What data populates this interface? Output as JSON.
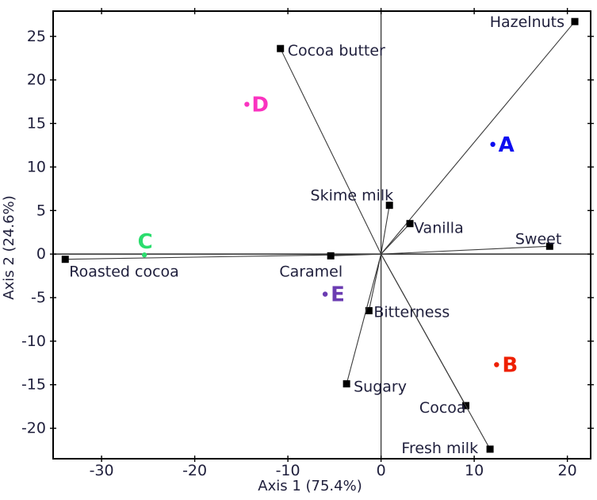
{
  "figure": {
    "background": "#ffffff"
  },
  "chart_data": {
    "type": "scatter",
    "subtype": "pca-biplot",
    "title": "",
    "xlabel": "Axis 1 (75.4%)",
    "ylabel": "Axis 2 (24.6%)",
    "xlim": [
      -35.2,
      22.5
    ],
    "ylim": [
      -23.5,
      27.9
    ],
    "x_ticks": [
      -30,
      -20,
      -10,
      0,
      10,
      20
    ],
    "y_ticks": [
      -20,
      -15,
      -10,
      -5,
      0,
      5,
      10,
      15,
      20,
      25
    ],
    "grid": false,
    "zero_axes": true,
    "legend": "none",
    "marker_style": "filled-square",
    "colors": {
      "border": "#000000",
      "zero_axis": "#2a2a2a",
      "vector_line": "#3a3a3a",
      "marker": "#000000",
      "text": "#1f1f3c"
    },
    "vectors": [
      {
        "label": "Hazelnuts",
        "x": 20.8,
        "y": 26.7,
        "label_anchor": "end",
        "label_dx": -13,
        "label_dy": 7
      },
      {
        "label": "Cocoa butter",
        "x": -10.8,
        "y": 23.6,
        "label_anchor": "start",
        "label_dx": 9,
        "label_dy": 9
      },
      {
        "label": "Skime milk",
        "x": 0.9,
        "y": 5.6,
        "label_anchor": "end",
        "label_dx": 5,
        "label_dy": -6
      },
      {
        "label": "Vanilla",
        "x": 3.1,
        "y": 3.5,
        "label_anchor": "start",
        "label_dx": 5,
        "label_dy": 12
      },
      {
        "label": "Sweet",
        "x": 18.1,
        "y": 0.9,
        "label_anchor": "end",
        "label_dx": 15,
        "label_dy": -3
      },
      {
        "label": "Roasted cocoa",
        "x": -33.9,
        "y": -0.6,
        "label_anchor": "start",
        "label_dx": 5,
        "label_dy": 22
      },
      {
        "label": "Caramel",
        "x": -5.4,
        "y": -0.2,
        "label_anchor": "end",
        "label_dx": 15,
        "label_dy": 26
      },
      {
        "label": "Bitterness",
        "x": -1.3,
        "y": -6.5,
        "label_anchor": "start",
        "label_dx": 6,
        "label_dy": 8
      },
      {
        "label": "Sugary",
        "x": -3.7,
        "y": -14.9,
        "label_anchor": "start",
        "label_dx": 9,
        "label_dy": 10
      },
      {
        "label": "Cocoa",
        "x": 9.1,
        "y": -17.4,
        "label_anchor": "end",
        "label_dx": 0,
        "label_dy": 9
      },
      {
        "label": "Fresh milk",
        "x": 11.7,
        "y": -22.4,
        "label_anchor": "end",
        "label_dx": -15,
        "label_dy": 5
      }
    ],
    "samples": [
      {
        "label": "A",
        "x": 12.0,
        "y": 12.6,
        "color": "#0d0df0",
        "label_anchor": "start",
        "label_dx": 7,
        "label_dy": 9
      },
      {
        "label": "B",
        "x": 12.4,
        "y": -12.7,
        "color": "#ee2000",
        "label_anchor": "start",
        "label_dx": 7,
        "label_dy": 9
      },
      {
        "label": "C",
        "x": -25.4,
        "y": -0.1,
        "color": "#2bdd6e",
        "label_anchor": "middle",
        "label_dx": 1,
        "label_dy": -8
      },
      {
        "label": "D",
        "x": -14.4,
        "y": 17.2,
        "color": "#fa33c0",
        "label_anchor": "start",
        "label_dx": 6,
        "label_dy": 9
      },
      {
        "label": "E",
        "x": -6.0,
        "y": -4.6,
        "color": "#6b3cb2",
        "label_anchor": "start",
        "label_dx": 7,
        "label_dy": 9
      }
    ]
  }
}
